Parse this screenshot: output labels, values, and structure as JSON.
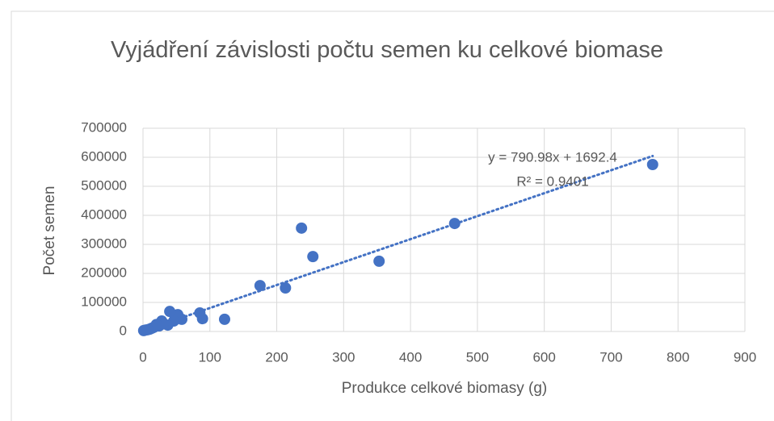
{
  "chart_data": {
    "type": "scatter",
    "title": "Vyjádření závislosti počtu semen ku celkové biomase",
    "x_label": "Produkce celkové biomasy (g)",
    "y_label": "Počet semen",
    "series": [
      {
        "name": "Počet semen",
        "color": "#4472c4",
        "x": [
          762,
          466,
          353,
          254,
          237,
          213,
          175,
          122,
          89,
          85,
          58,
          52,
          46,
          40,
          37,
          28,
          24,
          16,
          10,
          4,
          1,
          30,
          20,
          13,
          7
        ],
        "values": [
          575000,
          372000,
          242000,
          258000,
          356000,
          150000,
          158000,
          42000,
          44000,
          64000,
          42000,
          58000,
          36000,
          69000,
          22000,
          36000,
          19000,
          14000,
          8000,
          5000,
          3000,
          26000,
          24000,
          11000,
          6000
        ]
      }
    ],
    "trendline": {
      "slope": 790.98,
      "intercept": 1692.4,
      "equation": "y = 790.98x + 1692.4",
      "r_squared": "R² = 0.9401"
    },
    "xlim": [
      0,
      900
    ],
    "xticks": [
      0,
      100,
      200,
      300,
      400,
      500,
      600,
      700,
      800,
      900
    ],
    "ylim": [
      0,
      700000
    ],
    "yticks": [
      0,
      100000,
      200000,
      300000,
      400000,
      500000,
      600000,
      700000
    ],
    "grid": true
  }
}
